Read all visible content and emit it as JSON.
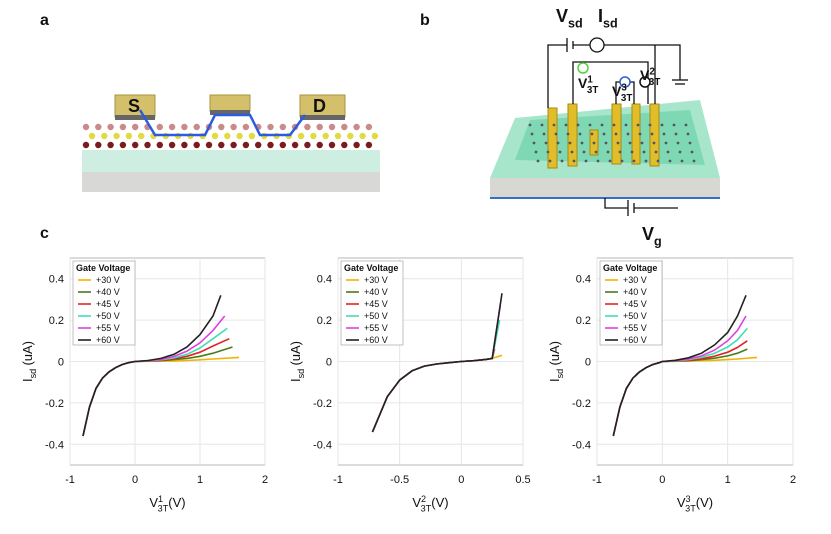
{
  "panels": {
    "a": {
      "letter": "a",
      "source": "S",
      "drain": "D"
    },
    "b": {
      "letter": "b",
      "vsd": {
        "base": "V",
        "sub": "sd"
      },
      "isd": {
        "base": "I",
        "sub": "sd"
      },
      "v1": {
        "base": "V",
        "sup": "1",
        "sub": "3T"
      },
      "v3": {
        "base": "V",
        "sup": "3",
        "sub": "3T"
      },
      "v2": {
        "base": "V",
        "sup": "2",
        "sub": "3T"
      },
      "vg": {
        "base": "V",
        "sub": "g"
      }
    },
    "c": {
      "letter": "c"
    }
  },
  "chart_data": [
    {
      "type": "line",
      "legend_title": "Gate Voltage",
      "legend": "upper left",
      "grid": true,
      "xlabel": {
        "base": "V",
        "sup": "1",
        "sub": "3T",
        "unit": "(V)"
      },
      "ylabel": {
        "base": "I",
        "sub": "sd",
        "unit": "(uA)"
      },
      "xlim": [
        -1,
        2
      ],
      "xticks": [
        -1,
        0,
        1,
        2
      ],
      "ylim": [
        -0.5,
        0.5
      ],
      "yticks": [
        -0.4,
        -0.2,
        0,
        0.2,
        0.4
      ],
      "series": [
        {
          "name": "+30 V",
          "color": "#f0b400",
          "x": [
            -0.8,
            -0.7,
            -0.6,
            -0.5,
            -0.4,
            -0.3,
            -0.2,
            -0.1,
            0,
            0.2,
            0.4,
            0.6,
            0.8,
            1.0,
            1.2,
            1.6
          ],
          "values": [
            -0.36,
            -0.22,
            -0.13,
            -0.08,
            -0.05,
            -0.03,
            -0.015,
            -0.006,
            0,
            0.001,
            0.002,
            0.003,
            0.005,
            0.008,
            0.012,
            0.02
          ]
        },
        {
          "name": "+40 V",
          "color": "#4d7a1c",
          "x": [
            -0.8,
            -0.7,
            -0.6,
            -0.5,
            -0.4,
            -0.3,
            -0.2,
            -0.1,
            0,
            0.2,
            0.4,
            0.6,
            0.8,
            1.0,
            1.2,
            1.5
          ],
          "values": [
            -0.36,
            -0.22,
            -0.13,
            -0.08,
            -0.05,
            -0.03,
            -0.015,
            -0.006,
            0,
            0.002,
            0.004,
            0.009,
            0.015,
            0.025,
            0.04,
            0.07
          ]
        },
        {
          "name": "+45 V",
          "color": "#e02424",
          "x": [
            -0.8,
            -0.7,
            -0.6,
            -0.5,
            -0.4,
            -0.3,
            -0.2,
            -0.1,
            0,
            0.2,
            0.4,
            0.6,
            0.8,
            1.0,
            1.2,
            1.45
          ],
          "values": [
            -0.36,
            -0.22,
            -0.13,
            -0.08,
            -0.05,
            -0.03,
            -0.015,
            -0.006,
            0,
            0.002,
            0.006,
            0.013,
            0.025,
            0.045,
            0.075,
            0.11
          ]
        },
        {
          "name": "+50 V",
          "color": "#3ee0b0",
          "x": [
            -0.8,
            -0.7,
            -0.6,
            -0.5,
            -0.4,
            -0.3,
            -0.2,
            -0.1,
            0,
            0.2,
            0.4,
            0.6,
            0.8,
            1.0,
            1.2,
            1.42
          ],
          "values": [
            -0.36,
            -0.22,
            -0.13,
            -0.08,
            -0.05,
            -0.03,
            -0.015,
            -0.006,
            0,
            0.003,
            0.008,
            0.018,
            0.035,
            0.065,
            0.11,
            0.16
          ]
        },
        {
          "name": "+55 V",
          "color": "#e040e0",
          "x": [
            -0.8,
            -0.7,
            -0.6,
            -0.5,
            -0.4,
            -0.3,
            -0.2,
            -0.1,
            0,
            0.2,
            0.4,
            0.6,
            0.8,
            1.0,
            1.2,
            1.38
          ],
          "values": [
            -0.36,
            -0.22,
            -0.13,
            -0.08,
            -0.05,
            -0.03,
            -0.015,
            -0.006,
            0,
            0.004,
            0.01,
            0.025,
            0.05,
            0.09,
            0.15,
            0.22
          ]
        },
        {
          "name": "+60 V",
          "color": "#222222",
          "x": [
            -0.8,
            -0.7,
            -0.6,
            -0.5,
            -0.4,
            -0.3,
            -0.2,
            -0.1,
            0,
            0.2,
            0.4,
            0.6,
            0.8,
            1.0,
            1.2,
            1.32
          ],
          "values": [
            -0.36,
            -0.22,
            -0.13,
            -0.08,
            -0.05,
            -0.03,
            -0.015,
            -0.006,
            0,
            0.005,
            0.015,
            0.035,
            0.07,
            0.13,
            0.22,
            0.32
          ]
        }
      ]
    },
    {
      "type": "line",
      "legend_title": "Gate Voltage",
      "legend": "upper left",
      "grid": true,
      "xlabel": {
        "base": "V",
        "sup": "2",
        "sub": "3T",
        "unit": "(V)"
      },
      "ylabel": {
        "base": "I",
        "sub": "sd",
        "unit": "(uA)"
      },
      "xlim": [
        -1,
        0.5
      ],
      "xticks": [
        -1,
        -0.5,
        0,
        0.5
      ],
      "ylim": [
        -0.5,
        0.5
      ],
      "yticks": [
        -0.4,
        -0.2,
        0,
        0.2,
        0.4
      ],
      "series": [
        {
          "name": "+30 V",
          "color": "#f0b400",
          "x": [
            -0.72,
            -0.65,
            -0.6,
            -0.5,
            -0.4,
            -0.3,
            -0.2,
            -0.1,
            0,
            0.1,
            0.2,
            0.25,
            0.33
          ],
          "values": [
            -0.34,
            -0.24,
            -0.17,
            -0.09,
            -0.045,
            -0.022,
            -0.012,
            -0.006,
            0,
            0.004,
            0.01,
            0.015,
            0.03
          ]
        },
        {
          "name": "+40 V",
          "color": "#4d7a1c",
          "x": [
            -0.72,
            -0.65,
            -0.6,
            -0.5,
            -0.4,
            -0.3,
            -0.2,
            -0.1,
            0,
            0.1,
            0.2,
            0.25,
            0.265
          ],
          "values": [
            -0.34,
            -0.24,
            -0.17,
            -0.09,
            -0.045,
            -0.022,
            -0.012,
            -0.006,
            0,
            0.004,
            0.01,
            0.015,
            0.05
          ]
        },
        {
          "name": "+45 V",
          "color": "#e02424",
          "x": [
            -0.72,
            -0.65,
            -0.6,
            -0.5,
            -0.4,
            -0.3,
            -0.2,
            -0.1,
            0,
            0.1,
            0.2,
            0.25,
            0.27
          ],
          "values": [
            -0.34,
            -0.24,
            -0.17,
            -0.09,
            -0.045,
            -0.022,
            -0.012,
            -0.006,
            0,
            0.004,
            0.01,
            0.015,
            0.06
          ]
        },
        {
          "name": "+50 V",
          "color": "#3ee0b0",
          "x": [
            -0.72,
            -0.65,
            -0.6,
            -0.5,
            -0.4,
            -0.3,
            -0.2,
            -0.1,
            0,
            0.1,
            0.2,
            0.25,
            0.31
          ],
          "values": [
            -0.34,
            -0.24,
            -0.17,
            -0.09,
            -0.045,
            -0.022,
            -0.012,
            -0.006,
            0,
            0.004,
            0.01,
            0.015,
            0.2
          ]
        },
        {
          "name": "+55 V",
          "color": "#e040e0",
          "x": [
            -0.72,
            -0.65,
            -0.6,
            -0.5,
            -0.4,
            -0.3,
            -0.2,
            -0.1,
            0,
            0.1,
            0.2,
            0.25,
            0.315
          ],
          "values": [
            -0.34,
            -0.24,
            -0.17,
            -0.09,
            -0.045,
            -0.022,
            -0.012,
            -0.006,
            0,
            0.004,
            0.01,
            0.015,
            0.27
          ]
        },
        {
          "name": "+60 V",
          "color": "#222222",
          "x": [
            -0.72,
            -0.65,
            -0.6,
            -0.5,
            -0.4,
            -0.3,
            -0.2,
            -0.1,
            0,
            0.1,
            0.2,
            0.25,
            0.33
          ],
          "values": [
            -0.34,
            -0.24,
            -0.17,
            -0.09,
            -0.045,
            -0.022,
            -0.012,
            -0.006,
            0,
            0.004,
            0.01,
            0.015,
            0.33
          ]
        }
      ]
    },
    {
      "type": "line",
      "legend_title": "Gate Voltage",
      "legend": "upper left",
      "grid": true,
      "xlabel": {
        "base": "V",
        "sup": "3",
        "sub": "3T",
        "unit": "(V)"
      },
      "ylabel": {
        "base": "I",
        "sub": "sd",
        "unit": "(uA)"
      },
      "xlim": [
        -1,
        2
      ],
      "xticks": [
        -1,
        0,
        1,
        2
      ],
      "ylim": [
        -0.5,
        0.5
      ],
      "yticks": [
        -0.4,
        -0.2,
        0,
        0.2,
        0.4
      ],
      "series": [
        {
          "name": "+30 V",
          "color": "#f0b400",
          "x": [
            -0.75,
            -0.65,
            -0.55,
            -0.45,
            -0.35,
            -0.25,
            -0.15,
            -0.05,
            0,
            0.2,
            0.4,
            0.6,
            0.8,
            1.0,
            1.15,
            1.45
          ],
          "values": [
            -0.36,
            -0.22,
            -0.13,
            -0.08,
            -0.05,
            -0.03,
            -0.015,
            -0.006,
            0,
            0.001,
            0.002,
            0.004,
            0.006,
            0.009,
            0.012,
            0.02
          ]
        },
        {
          "name": "+40 V",
          "color": "#4d7a1c",
          "x": [
            -0.75,
            -0.65,
            -0.55,
            -0.45,
            -0.35,
            -0.25,
            -0.15,
            -0.05,
            0,
            0.2,
            0.4,
            0.6,
            0.8,
            1.0,
            1.15,
            1.3
          ],
          "values": [
            -0.36,
            -0.22,
            -0.13,
            -0.08,
            -0.05,
            -0.03,
            -0.015,
            -0.006,
            0,
            0.002,
            0.004,
            0.009,
            0.016,
            0.027,
            0.04,
            0.06
          ]
        },
        {
          "name": "+45 V",
          "color": "#e02424",
          "x": [
            -0.75,
            -0.65,
            -0.55,
            -0.45,
            -0.35,
            -0.25,
            -0.15,
            -0.05,
            0,
            0.2,
            0.4,
            0.6,
            0.8,
            1.0,
            1.15,
            1.3
          ],
          "values": [
            -0.36,
            -0.22,
            -0.13,
            -0.08,
            -0.05,
            -0.03,
            -0.015,
            -0.006,
            0,
            0.002,
            0.006,
            0.013,
            0.026,
            0.045,
            0.068,
            0.1
          ]
        },
        {
          "name": "+50 V",
          "color": "#3ee0b0",
          "x": [
            -0.75,
            -0.65,
            -0.55,
            -0.45,
            -0.35,
            -0.25,
            -0.15,
            -0.05,
            0,
            0.2,
            0.4,
            0.6,
            0.8,
            1.0,
            1.15,
            1.3
          ],
          "values": [
            -0.36,
            -0.22,
            -0.13,
            -0.08,
            -0.05,
            -0.03,
            -0.015,
            -0.006,
            0,
            0.003,
            0.009,
            0.02,
            0.04,
            0.07,
            0.105,
            0.16
          ]
        },
        {
          "name": "+55 V",
          "color": "#e040e0",
          "x": [
            -0.75,
            -0.65,
            -0.55,
            -0.45,
            -0.35,
            -0.25,
            -0.15,
            -0.05,
            0,
            0.2,
            0.4,
            0.6,
            0.8,
            1.0,
            1.15,
            1.28
          ],
          "values": [
            -0.36,
            -0.22,
            -0.13,
            -0.08,
            -0.05,
            -0.03,
            -0.015,
            -0.006,
            0,
            0.004,
            0.012,
            0.027,
            0.055,
            0.1,
            0.15,
            0.22
          ]
        },
        {
          "name": "+60 V",
          "color": "#222222",
          "x": [
            -0.75,
            -0.65,
            -0.55,
            -0.45,
            -0.35,
            -0.25,
            -0.15,
            -0.05,
            0,
            0.2,
            0.4,
            0.6,
            0.8,
            1.0,
            1.15,
            1.28
          ],
          "values": [
            -0.36,
            -0.22,
            -0.13,
            -0.08,
            -0.05,
            -0.03,
            -0.015,
            -0.006,
            0,
            0.006,
            0.018,
            0.04,
            0.08,
            0.14,
            0.22,
            0.32
          ]
        }
      ]
    }
  ]
}
